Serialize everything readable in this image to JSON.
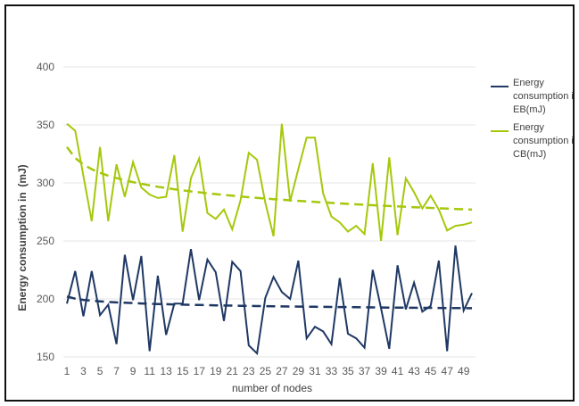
{
  "chart_data": {
    "type": "line",
    "title": "",
    "xlabel": "number of nodes",
    "ylabel_left": "Energy consumption in",
    "ylabel_right": "(mJ)",
    "ylim": [
      150,
      400
    ],
    "yticks": [
      150,
      200,
      250,
      300,
      350,
      400
    ],
    "x": [
      1,
      2,
      3,
      4,
      5,
      6,
      7,
      8,
      9,
      10,
      11,
      12,
      13,
      14,
      15,
      16,
      17,
      18,
      19,
      20,
      21,
      22,
      23,
      24,
      25,
      26,
      27,
      28,
      29,
      30,
      31,
      32,
      33,
      34,
      35,
      36,
      37,
      38,
      39,
      40,
      41,
      42,
      43,
      44,
      45,
      46,
      47,
      48,
      49,
      50
    ],
    "xtick_labels": [
      "1",
      "3",
      "5",
      "7",
      "9",
      "11",
      "13",
      "15",
      "17",
      "19",
      "21",
      "23",
      "25",
      "27",
      "29",
      "31",
      "33",
      "35",
      "37",
      "39",
      "41",
      "43",
      "45",
      "47",
      "49"
    ],
    "grid": "horizontal",
    "legend_position": "right",
    "series": [
      {
        "name_lines": [
          "Energy",
          "consumption in",
          "EB(mJ)"
        ],
        "color": "#1f3864",
        "values": [
          196,
          224,
          185,
          224,
          186,
          195,
          161,
          238,
          199,
          237,
          155,
          220,
          169,
          196,
          196,
          243,
          199,
          234,
          223,
          181,
          232,
          224,
          160,
          153,
          201,
          219,
          206,
          200,
          233,
          166,
          176,
          172,
          161,
          218,
          170,
          166,
          158,
          225,
          192,
          157,
          229,
          191,
          214,
          189,
          194,
          233,
          155,
          246,
          190,
          205
        ],
        "trend": [
          202,
          192
        ]
      },
      {
        "name_lines": [
          "Energy",
          "consumption in",
          "CB(mJ)"
        ],
        "color": "#a5c80c",
        "values": [
          351,
          345,
          306,
          267,
          331,
          267,
          316,
          288,
          318,
          296,
          290,
          287,
          288,
          324,
          258,
          304,
          321,
          274,
          269,
          277,
          260,
          285,
          326,
          320,
          283,
          254,
          351,
          284,
          312,
          339,
          339,
          291,
          271,
          266,
          258,
          263,
          256,
          317,
          250,
          322,
          255,
          304,
          292,
          278,
          289,
          277,
          259,
          263,
          264,
          266
        ],
        "trend": [
          331,
          277
        ]
      }
    ]
  }
}
